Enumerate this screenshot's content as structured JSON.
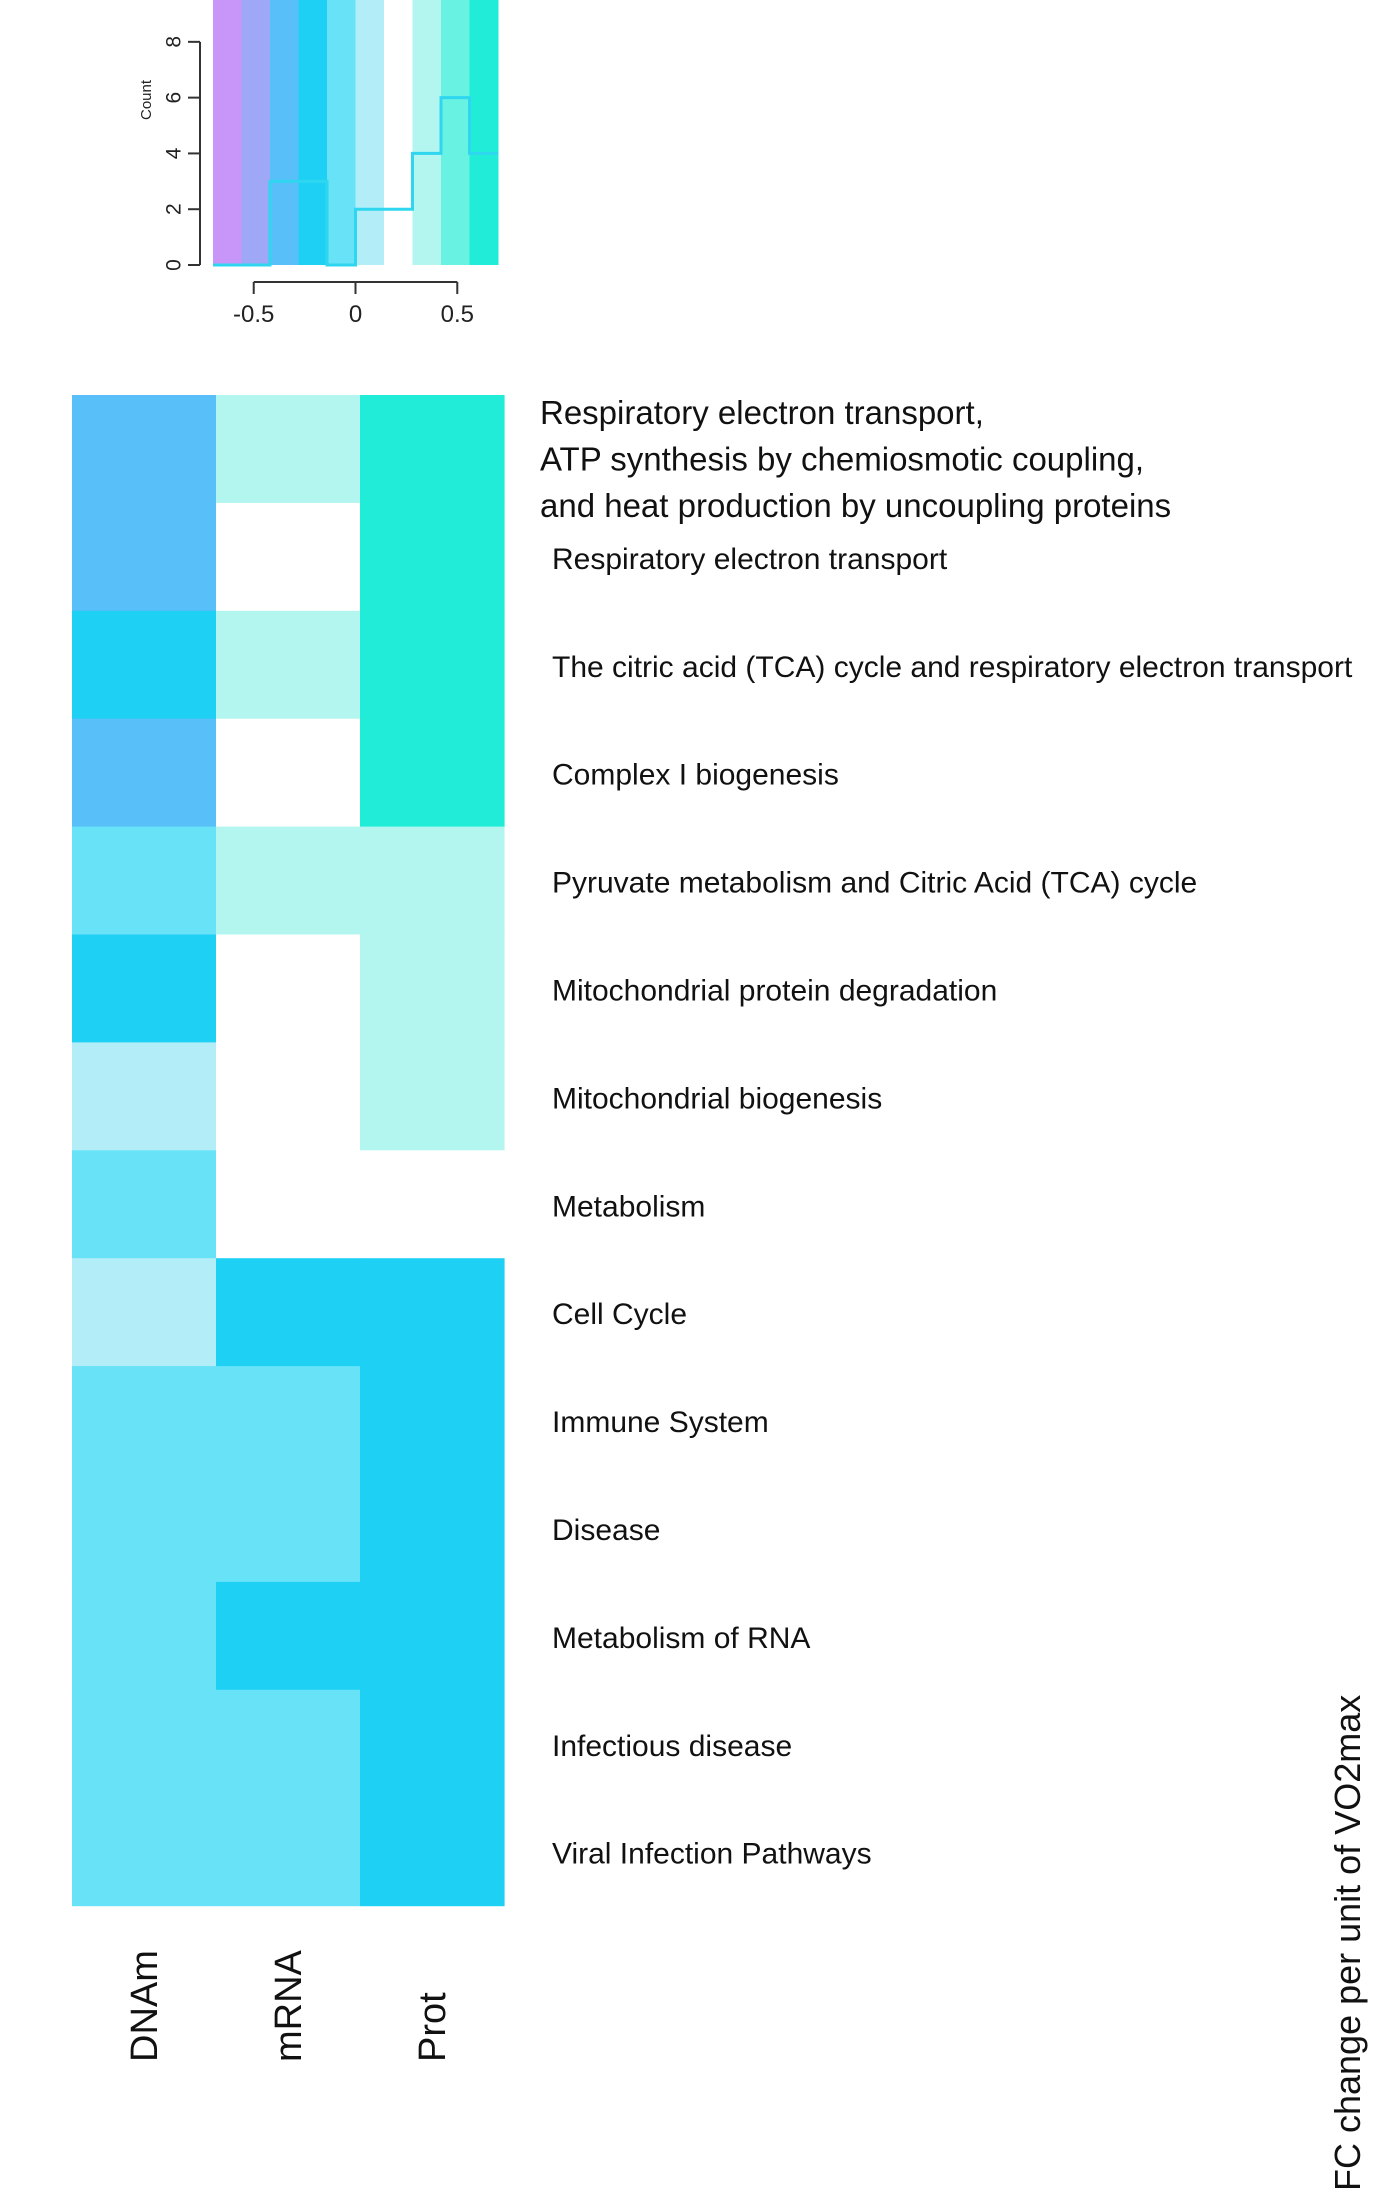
{
  "chart_data": [
    {
      "type": "histogram",
      "ylabel": "Count",
      "x_ticks": [
        "-0.5",
        "0",
        "0.5"
      ],
      "x_tick_values": [
        -0.5,
        0,
        0.5
      ],
      "y_ticks": [
        "0",
        "2",
        "4",
        "6",
        "8"
      ],
      "y_tick_values": [
        0,
        2,
        4,
        6,
        8
      ],
      "xlim": [
        -0.7,
        0.7
      ],
      "ylim": [
        0,
        9.5
      ],
      "bins": [
        {
          "x0": -0.7,
          "x1": -0.56,
          "count": 0
        },
        {
          "x0": -0.56,
          "x1": -0.42,
          "count": 0
        },
        {
          "x0": -0.42,
          "x1": -0.28,
          "count": 3
        },
        {
          "x0": -0.28,
          "x1": -0.14,
          "count": 3
        },
        {
          "x0": -0.14,
          "x1": 0.0,
          "count": 0
        },
        {
          "x0": 0.0,
          "x1": 0.14,
          "count": 2
        },
        {
          "x0": 0.14,
          "x1": 0.28,
          "count": 2
        },
        {
          "x0": 0.28,
          "x1": 0.42,
          "count": 4
        },
        {
          "x0": 0.42,
          "x1": 0.56,
          "count": 6
        },
        {
          "x0": 0.56,
          "x1": 0.7,
          "count": 4
        }
      ],
      "background_colors": [
        "#c896f8",
        "#9ea8f6",
        "#59bff9",
        "#1fd0f5",
        "#67e2f6",
        "#b3eef8",
        "#ffffff",
        "#b3f6ef",
        "#67f2e2",
        "#20ecd8"
      ]
    },
    {
      "type": "heatmap",
      "columns": [
        "DNAm",
        "mRNA",
        "Prot"
      ],
      "rows": [
        "Respiratory electron transport,\nATP synthesis by chemiosmotic coupling,\nand heat production by uncoupling proteins",
        "Respiratory electron transport",
        "The citric acid (TCA) cycle and respiratory electron transport",
        "Complex I biogenesis",
        "Pyruvate metabolism and Citric Acid (TCA) cycle",
        "Mitochondrial protein degradation",
        "Mitochondrial biogenesis",
        "Metabolism",
        "Cell Cycle",
        "Immune System",
        "Disease",
        "Metabolism of RNA",
        "Infectious disease",
        "Viral Infection Pathways"
      ],
      "values": [
        [
          -0.35,
          0.35,
          0.63
        ],
        [
          -0.35,
          0.15,
          0.63
        ],
        [
          -0.25,
          0.35,
          0.63
        ],
        [
          -0.35,
          0.15,
          0.63
        ],
        [
          -0.05,
          0.35,
          0.35
        ],
        [
          -0.25,
          0.15,
          0.35
        ],
        [
          0.05,
          0.15,
          0.35
        ],
        [
          -0.05,
          null,
          null
        ],
        [
          0.05,
          -0.25,
          -0.25
        ],
        [
          -0.05,
          -0.05,
          -0.25
        ],
        [
          -0.05,
          -0.05,
          -0.25
        ],
        [
          -0.05,
          -0.25,
          -0.25
        ],
        [
          -0.05,
          -0.05,
          -0.25
        ],
        [
          -0.05,
          -0.05,
          -0.25
        ]
      ],
      "color_scale": {
        "breaks": [
          -0.7,
          -0.56,
          -0.42,
          -0.28,
          -0.14,
          0.0,
          0.14,
          0.28,
          0.42,
          0.56,
          0.7
        ],
        "colors": [
          "#c896f8",
          "#9ea8f6",
          "#59bff9",
          "#1fd0f5",
          "#67e2f6",
          "#b3eef8",
          "#ffffff",
          "#b3f6ef",
          "#67f2e2",
          "#20ecd8"
        ]
      },
      "color_key_title": "FC change per unit of VO2max"
    }
  ]
}
